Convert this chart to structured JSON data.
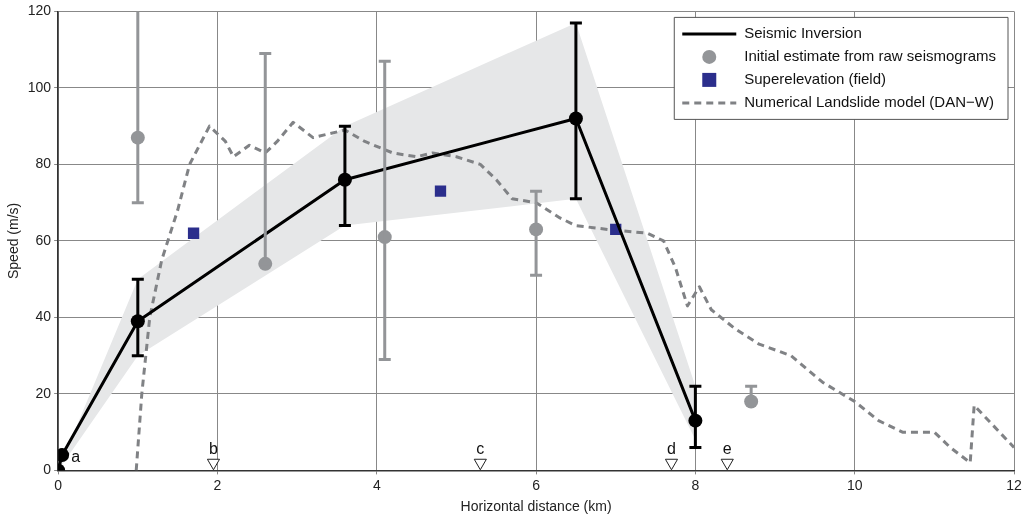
{
  "chart_data": {
    "type": "line",
    "xlabel": "Horizontal distance (km)",
    "ylabel": "Speed (m/s)",
    "xlim": [
      0,
      12
    ],
    "xticks": [
      0,
      2,
      4,
      6,
      8,
      10,
      12
    ],
    "ylim": [
      0,
      120
    ],
    "yticks": [
      0,
      20,
      40,
      60,
      80,
      100,
      120
    ],
    "grid": true,
    "legend": "top right",
    "series": [
      {
        "name": "Seismic Inversion",
        "type": "line",
        "color": "#000000",
        "marker": "circle",
        "line_style": "solid",
        "x": [
          0,
          0.05,
          1,
          3.6,
          6.5,
          8
        ],
        "values": [
          0,
          4,
          39,
          76,
          92,
          13
        ],
        "errors": [
          null,
          null,
          [
            30,
            50
          ],
          [
            64,
            90
          ],
          [
            71,
            117
          ],
          [
            6,
            22
          ]
        ],
        "lower": [
          0,
          null,
          30,
          64,
          71,
          8
        ],
        "upper": [
          0,
          null,
          50,
          90,
          117,
          22
        ]
      },
      {
        "name": "Initial estimate from raw seismograms",
        "type": "scatter",
        "color": "#939598",
        "marker": "circle",
        "x": [
          1,
          2.6,
          4.1,
          6,
          8.7
        ],
        "values": [
          87,
          54,
          61,
          63,
          18
        ],
        "errors": [
          [
            70,
            120
          ],
          [
            54,
            109
          ],
          [
            29,
            107
          ],
          [
            51,
            73
          ],
          [
            18,
            22
          ]
        ]
      },
      {
        "name": "Superelevation (field)",
        "type": "scatter",
        "color": "#2b2e8c",
        "marker": "square",
        "x": [
          1.7,
          4.8,
          7
        ],
        "values": [
          62,
          73,
          63
        ]
      },
      {
        "type": "scatter",
        "color": "#ffffff",
        "marker": "triangle",
        "x": [
          1.95,
          5.3,
          7.7,
          8.4
        ],
        "values": [
          2,
          2,
          2,
          2
        ]
      },
      {
        "name": "Numerical Landslide model (DAN−W)",
        "type": "line",
        "color": "#808285",
        "marker": "none",
        "line_style": "dashed",
        "x": [
          0.98,
          1.05,
          1.15,
          1.3,
          1.5,
          1.65,
          1.9,
          2.1,
          2.2,
          2.4,
          2.6,
          2.75,
          2.95,
          3.2,
          3.4,
          3.6,
          3.85,
          4.2,
          4.5,
          4.7,
          5,
          5.3,
          5.5,
          5.7,
          6,
          6.3,
          6.5,
          6.9,
          7.4,
          7.6,
          7.75,
          7.9,
          8.05,
          8.2,
          8.5,
          8.8,
          9.2,
          9.6,
          10,
          10.3,
          10.6,
          11,
          11.2,
          11.45,
          11.5,
          12
        ],
        "values": [
          0,
          20,
          40,
          55,
          68,
          80,
          90,
          86,
          82,
          85,
          83,
          86,
          91,
          87,
          88,
          89,
          86,
          83,
          82,
          83,
          82,
          80,
          76,
          71,
          70,
          66,
          64,
          63,
          62,
          60,
          53,
          43,
          48,
          42,
          37,
          33,
          30,
          23,
          18,
          13,
          10,
          10,
          6,
          2,
          17,
          6
        ]
      }
    ],
    "annotations": [
      {
        "text": "a",
        "x": 0.05,
        "y": 4
      },
      {
        "text": "b",
        "x": 1.95,
        "y": 2
      },
      {
        "text": "c",
        "x": 5.3,
        "y": 2
      },
      {
        "text": "d",
        "x": 7.7,
        "y": 2
      },
      {
        "text": "e",
        "x": 8.4,
        "y": 2
      }
    ]
  }
}
